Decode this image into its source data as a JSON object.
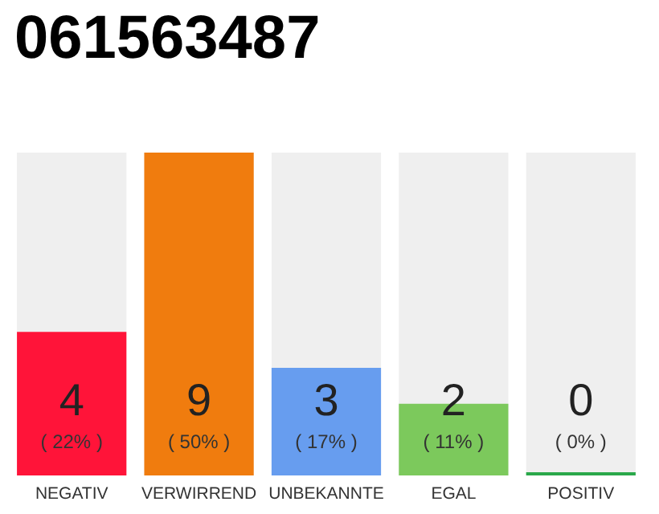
{
  "chart_data": {
    "type": "bar",
    "title": "061563487",
    "categories": [
      "NEGATIV",
      "VERWIRREND",
      "UNBEKANNTE",
      "EGAL",
      "POSITIV"
    ],
    "values": [
      4,
      9,
      3,
      2,
      0
    ],
    "colors": [
      "#ff1439",
      "#f07c0e",
      "#679def",
      "#7cc95c",
      "#2aa84a"
    ],
    "value_labels": [
      "4\n( 22% )",
      "9\n( 50% )",
      "3\n( 17% )",
      "2\n( 11% )",
      "0\n( 0% )"
    ]
  }
}
